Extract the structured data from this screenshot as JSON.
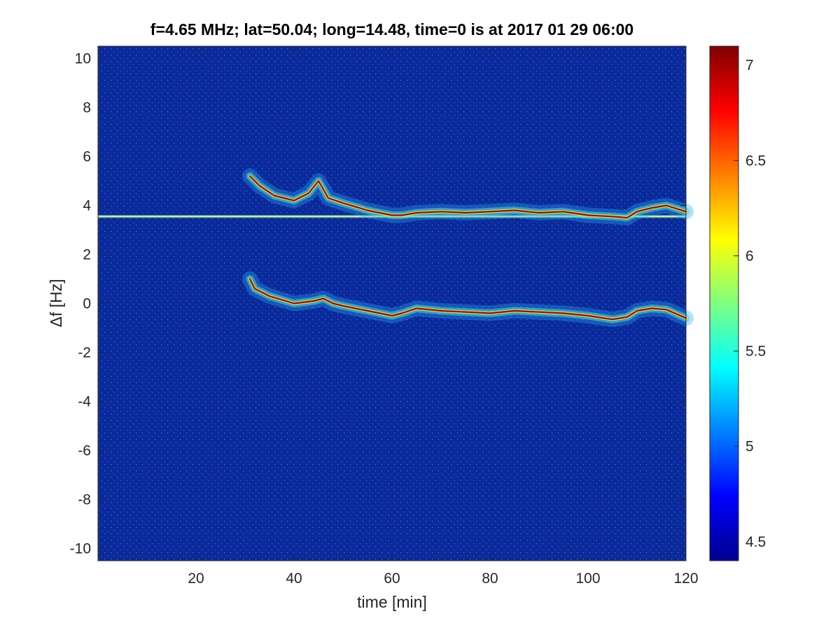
{
  "chart_data": {
    "type": "heatmap",
    "title": "f=4.65 MHz;  lat=50.04; long=14.48, time=0 is at 2017 01 29 06:00",
    "xlabel": "time [min]",
    "ylabel": "Δf [Hz]",
    "xlim": [
      0,
      120
    ],
    "ylim": [
      -10.5,
      10.5
    ],
    "xticks": [
      20,
      40,
      60,
      80,
      100,
      120
    ],
    "yticks": [
      10,
      8,
      6,
      4,
      2,
      0,
      -2,
      -4,
      -6,
      -8,
      -10
    ],
    "colorbar": {
      "colormap": "jet",
      "clim": [
        4.4,
        7.1
      ],
      "ticks": [
        7,
        6.5,
        6,
        5.5,
        5,
        4.5
      ]
    },
    "features": [
      {
        "name": "constant carrier line",
        "x": [
          0,
          120
        ],
        "y": [
          3.55,
          3.55
        ]
      },
      {
        "name": "upper trace",
        "x": [
          31,
          33,
          36,
          40,
          43,
          45,
          47,
          50,
          55,
          60,
          62,
          65,
          70,
          75,
          80,
          85,
          90,
          95,
          100,
          105,
          108,
          110,
          113,
          116,
          120
        ],
        "y": [
          5.2,
          4.8,
          4.4,
          4.2,
          4.5,
          5.0,
          4.3,
          4.1,
          3.8,
          3.6,
          3.6,
          3.7,
          3.75,
          3.7,
          3.75,
          3.8,
          3.7,
          3.75,
          3.6,
          3.55,
          3.5,
          3.75,
          3.9,
          4.0,
          3.75
        ]
      },
      {
        "name": "lower trace",
        "x": [
          31,
          32,
          35,
          40,
          44,
          46,
          48,
          50,
          55,
          60,
          62,
          65,
          70,
          75,
          80,
          85,
          90,
          95,
          100,
          105,
          108,
          110,
          113,
          116,
          120
        ],
        "y": [
          1.0,
          0.6,
          0.3,
          0.0,
          0.1,
          0.2,
          0.0,
          -0.1,
          -0.3,
          -0.5,
          -0.4,
          -0.2,
          -0.3,
          -0.35,
          -0.4,
          -0.3,
          -0.35,
          -0.4,
          -0.5,
          -0.65,
          -0.55,
          -0.3,
          -0.2,
          -0.25,
          -0.6
        ]
      }
    ]
  }
}
